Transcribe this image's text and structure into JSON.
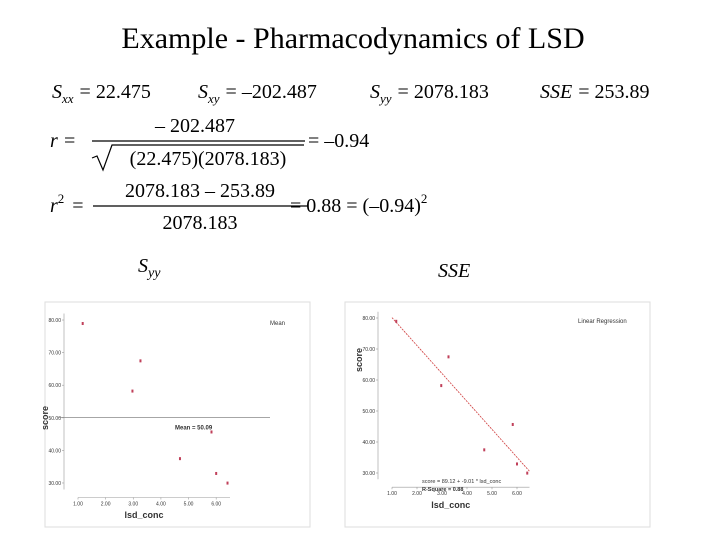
{
  "title": "Example - Pharmacodynamics of LSD",
  "formulas": {
    "sums": [
      {
        "symbol": "S",
        "sub": "xx",
        "rhs": "= 22.475"
      },
      {
        "symbol": "S",
        "sub": "xy",
        "rhs": "= –202.487"
      },
      {
        "symbol": "S",
        "sub": "yy",
        "rhs": "= 2078.183"
      },
      {
        "symbol": "SSE",
        "rhs": "= 253.89"
      }
    ],
    "r": {
      "lhs": "r =",
      "numerator": "– 202.487",
      "denominator": "(22.475)(2078.183)",
      "result": "= –0.94"
    },
    "r2": {
      "lhs": "r",
      "sup": "2",
      "eq": "=",
      "numerator": "2078.183 – 253.89",
      "denominator": "2078.183",
      "result": "= 0.88 = (–0.94)",
      "result_sup": "2"
    }
  },
  "captions": [
    {
      "symbol": "S",
      "sub": "yy"
    },
    {
      "symbol": "SSE"
    }
  ],
  "chart_data": [
    {
      "type": "scatter",
      "legend_title": "Mean",
      "x_label": "lsd_conc",
      "y_label": "score",
      "x": [
        1.17,
        2.97,
        3.26,
        4.69,
        5.83,
        6.0,
        6.41
      ],
      "series": [
        {
          "color": "#c0405a",
          "values": [
            78.93,
            58.2,
            67.47,
            37.47,
            45.65,
            32.92,
            29.97
          ]
        }
      ],
      "mean": 50.09,
      "mean_label": "Mean = 50.09",
      "xlim": [
        1,
        6.5
      ],
      "ylim": [
        28,
        82
      ],
      "xticks": [
        {
          "value": 1,
          "label": "1.00"
        },
        {
          "value": 2,
          "label": "2.00"
        },
        {
          "value": 3,
          "label": "3.00"
        },
        {
          "value": 4,
          "label": "4.00"
        },
        {
          "value": 5,
          "label": "5.00"
        },
        {
          "value": 6,
          "label": "6.00"
        }
      ],
      "yticks": [
        {
          "value": 30,
          "label": "30.00"
        },
        {
          "value": 40,
          "label": "40.00"
        },
        {
          "value": 50,
          "label": "50.00"
        },
        {
          "value": 60,
          "label": "60.00"
        },
        {
          "value": 70,
          "label": "70.00"
        },
        {
          "value": 80,
          "label": "80.00"
        }
      ]
    },
    {
      "type": "scatter",
      "legend_title": "Linear Regression",
      "x_label": "lsd_conc",
      "y_label": "score",
      "x": [
        1.17,
        2.97,
        3.26,
        4.69,
        5.83,
        6.0,
        6.41
      ],
      "series": [
        {
          "color": "#c0405a",
          "values": [
            78.93,
            58.2,
            67.47,
            37.47,
            45.65,
            32.92,
            29.97
          ]
        }
      ],
      "regression": {
        "intercept": 89.12,
        "slope": -9.01,
        "color": "#d04040"
      },
      "regression_label": "score = 89.12 + -9.01 * lsd_conc",
      "r_square_label": "R-Square = 0.88",
      "xlim": [
        1,
        6.5
      ],
      "ylim": [
        28,
        82
      ],
      "xticks": [
        {
          "value": 1,
          "label": "1.00"
        },
        {
          "value": 2,
          "label": "2.00"
        },
        {
          "value": 3,
          "label": "3.00"
        },
        {
          "value": 4,
          "label": "4.00"
        },
        {
          "value": 5,
          "label": "5.00"
        },
        {
          "value": 6,
          "label": "6.00"
        }
      ],
      "yticks": [
        {
          "value": 30,
          "label": "30.00"
        },
        {
          "value": 40,
          "label": "40.00"
        },
        {
          "value": 50,
          "label": "50.00"
        },
        {
          "value": 60,
          "label": "60.00"
        },
        {
          "value": 70,
          "label": "70.00"
        },
        {
          "value": 80,
          "label": "80.00"
        }
      ]
    }
  ]
}
